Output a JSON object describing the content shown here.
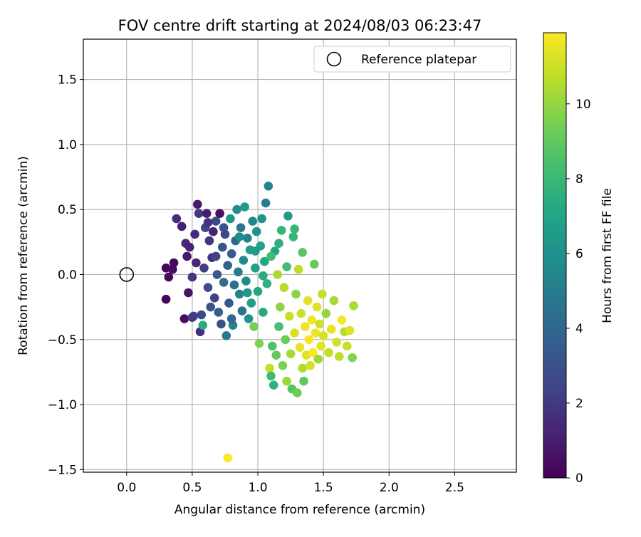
{
  "chart_data": {
    "type": "scatter",
    "title": "FOV centre drift starting at 2024/08/03 06:23:47",
    "xlabel": "Angular distance from reference (arcmin)",
    "ylabel": "Rotation from reference (arcmin)",
    "xlim": [
      -0.33,
      2.97
    ],
    "ylim": [
      -1.52,
      1.81
    ],
    "xticks": [
      "0.0",
      "0.5",
      "1.0",
      "1.5",
      "2.0",
      "2.5"
    ],
    "xtick_values": [
      0.0,
      0.5,
      1.0,
      1.5,
      2.0,
      2.5
    ],
    "yticks": [
      "−1.5",
      "−1.0",
      "−0.5",
      "0.0",
      "0.5",
      "1.0",
      "1.5"
    ],
    "ytick_values": [
      -1.5,
      -1.0,
      -0.5,
      0.0,
      0.5,
      1.0,
      1.5
    ],
    "grid": true,
    "legend": {
      "position": "top-right",
      "entries": [
        {
          "label": "Reference platepar",
          "marker": "open-circle"
        }
      ]
    },
    "reference_point": {
      "x": 0.0,
      "y": 0.0
    },
    "colorbar": {
      "label": "Hours from first FF file",
      "colormap": "viridis",
      "range": [
        0,
        11.9
      ],
      "ticks": [
        "0",
        "2",
        "4",
        "6",
        "8",
        "10"
      ],
      "tick_values": [
        0,
        2,
        4,
        6,
        8,
        10
      ]
    },
    "points": [
      [
        0.3,
        -0.19,
        0.1
      ],
      [
        0.3,
        0.05,
        0.2
      ],
      [
        0.32,
        -0.02,
        0.3
      ],
      [
        0.35,
        0.04,
        0.4
      ],
      [
        0.36,
        0.09,
        0.3
      ],
      [
        0.38,
        0.43,
        1.6
      ],
      [
        0.42,
        0.37,
        1.1
      ],
      [
        0.44,
        -0.34,
        0.5
      ],
      [
        0.45,
        0.24,
        1.4
      ],
      [
        0.46,
        0.14,
        0.8
      ],
      [
        0.47,
        -0.14,
        0.7
      ],
      [
        0.48,
        0.21,
        1.2
      ],
      [
        0.5,
        -0.02,
        1.9
      ],
      [
        0.51,
        -0.32,
        2.4
      ],
      [
        0.52,
        0.31,
        1.5
      ],
      [
        0.53,
        0.09,
        1.3
      ],
      [
        0.54,
        0.54,
        0.9
      ],
      [
        0.55,
        0.47,
        2.0
      ],
      [
        0.56,
        -0.44,
        1.6
      ],
      [
        0.57,
        -0.31,
        2.6
      ],
      [
        0.58,
        -0.39,
        7.4
      ],
      [
        0.59,
        0.05,
        2.2
      ],
      [
        0.6,
        0.36,
        2.5
      ],
      [
        0.61,
        0.47,
        1.0
      ],
      [
        0.62,
        -0.1,
        2.8
      ],
      [
        0.63,
        0.26,
        1.9
      ],
      [
        0.64,
        -0.25,
        3.2
      ],
      [
        0.65,
        0.13,
        1.7
      ],
      [
        0.66,
        0.33,
        1.2
      ],
      [
        0.67,
        -0.18,
        2.3
      ],
      [
        0.68,
        0.41,
        2.7
      ],
      [
        0.69,
        0.0,
        3.4
      ],
      [
        0.7,
        -0.29,
        3.6
      ],
      [
        0.71,
        0.47,
        0.6
      ],
      [
        0.72,
        -0.38,
        2.9
      ],
      [
        0.73,
        0.21,
        3.1
      ],
      [
        0.74,
        -0.06,
        4.2
      ],
      [
        0.75,
        0.31,
        2.6
      ],
      [
        0.76,
        -0.47,
        4.8
      ],
      [
        0.77,
        0.07,
        3.8
      ],
      [
        0.78,
        -0.22,
        3.3
      ],
      [
        0.79,
        0.43,
        6.3
      ],
      [
        0.8,
        0.16,
        3.5
      ],
      [
        0.81,
        -0.39,
        5.2
      ],
      [
        0.82,
        -0.08,
        4.5
      ],
      [
        0.83,
        0.26,
        4.0
      ],
      [
        0.84,
        0.5,
        5.8
      ],
      [
        0.85,
        0.02,
        4.9
      ],
      [
        0.86,
        -0.15,
        5.3
      ],
      [
        0.87,
        0.36,
        4.7
      ],
      [
        0.88,
        -0.28,
        4.6
      ],
      [
        0.89,
        0.11,
        5.6
      ],
      [
        0.9,
        0.52,
        6.4
      ],
      [
        0.91,
        -0.05,
        5.9
      ],
      [
        0.92,
        0.28,
        5.1
      ],
      [
        0.93,
        -0.34,
        6.1
      ],
      [
        0.94,
        0.19,
        6.7
      ],
      [
        0.95,
        -0.22,
        6.6
      ],
      [
        0.96,
        0.41,
        5.5
      ],
      [
        0.97,
        -0.4,
        9.4
      ],
      [
        0.98,
        0.05,
        6.8
      ],
      [
        0.99,
        0.33,
        6.0
      ],
      [
        1.0,
        -0.13,
        7.0
      ],
      [
        1.01,
        -0.53,
        9.6
      ],
      [
        1.02,
        0.22,
        6.9
      ],
      [
        1.03,
        0.43,
        6.2
      ],
      [
        1.04,
        -0.29,
        7.3
      ],
      [
        1.05,
        0.1,
        7.1
      ],
      [
        1.06,
        0.55,
        5.0
      ],
      [
        1.07,
        -0.07,
        7.6
      ],
      [
        1.08,
        0.68,
        5.4
      ],
      [
        1.09,
        -0.72,
        10.8
      ],
      [
        1.1,
        -0.78,
        8.1
      ],
      [
        1.11,
        -0.55,
        8.6
      ],
      [
        1.12,
        -0.85,
        7.7
      ],
      [
        1.13,
        0.18,
        7.2
      ],
      [
        1.14,
        -0.62,
        9.0
      ],
      [
        1.15,
        0.0,
        10.4
      ],
      [
        1.16,
        -0.4,
        8.4
      ],
      [
        1.17,
        -0.25,
        9.9
      ],
      [
        1.18,
        0.34,
        7.9
      ],
      [
        1.19,
        -0.7,
        9.5
      ],
      [
        1.2,
        -0.1,
        10.6
      ],
      [
        1.21,
        -0.5,
        9.2
      ],
      [
        1.22,
        -0.82,
        10.1
      ],
      [
        1.23,
        0.45,
        6.5
      ],
      [
        1.24,
        -0.32,
        10.9
      ],
      [
        1.25,
        -0.61,
        10.3
      ],
      [
        1.26,
        -0.88,
        8.7
      ],
      [
        1.27,
        0.29,
        7.8
      ],
      [
        1.28,
        -0.45,
        11.2
      ],
      [
        1.29,
        -0.15,
        9.8
      ],
      [
        1.3,
        -0.91,
        9.3
      ],
      [
        1.31,
        0.04,
        10.7
      ],
      [
        1.32,
        -0.56,
        11.5
      ],
      [
        1.33,
        -0.3,
        11.0
      ],
      [
        1.34,
        -0.72,
        10.5
      ],
      [
        1.35,
        -0.82,
        8.9
      ],
      [
        1.36,
        -0.4,
        11.6
      ],
      [
        1.37,
        -0.62,
        11.3
      ],
      [
        1.38,
        -0.2,
        11.4
      ],
      [
        1.39,
        -0.5,
        11.8
      ],
      [
        1.4,
        -0.7,
        11.1
      ],
      [
        1.41,
        -0.35,
        11.7
      ],
      [
        1.42,
        -0.6,
        11.9
      ],
      [
        1.43,
        0.08,
        9.1
      ],
      [
        1.44,
        -0.45,
        11.6
      ],
      [
        1.45,
        -0.25,
        11.3
      ],
      [
        1.46,
        -0.65,
        10.2
      ],
      [
        1.47,
        -0.38,
        11.0
      ],
      [
        1.48,
        -0.55,
        11.4
      ],
      [
        1.49,
        -0.15,
        10.9
      ],
      [
        1.5,
        -0.47,
        11.2
      ],
      [
        1.52,
        -0.3,
        10.0
      ],
      [
        1.54,
        -0.6,
        10.8
      ],
      [
        1.56,
        -0.42,
        11.5
      ],
      [
        1.58,
        -0.2,
        10.3
      ],
      [
        1.6,
        -0.52,
        11.1
      ],
      [
        1.62,
        -0.63,
        10.7
      ],
      [
        1.64,
        -0.35,
        11.8
      ],
      [
        1.66,
        -0.44,
        10.6
      ],
      [
        1.68,
        -0.55,
        10.9
      ],
      [
        1.7,
        -0.43,
        11.3
      ],
      [
        1.72,
        -0.64,
        9.7
      ],
      [
        1.73,
        -0.24,
        10.4
      ],
      [
        0.77,
        -1.41,
        11.9
      ],
      [
        0.5,
        -0.33,
        2.1
      ],
      [
        0.62,
        0.4,
        1.8
      ],
      [
        0.68,
        0.14,
        2.4
      ],
      [
        0.74,
        0.36,
        3.0
      ],
      [
        0.8,
        -0.34,
        4.1
      ],
      [
        0.86,
        0.29,
        5.7
      ],
      [
        0.92,
        -0.14,
        6.3
      ],
      [
        0.98,
        0.18,
        6.5
      ],
      [
        1.04,
        -0.01,
        7.4
      ],
      [
        1.1,
        0.14,
        8.2
      ],
      [
        1.16,
        0.24,
        7.5
      ],
      [
        1.22,
        0.06,
        8.3
      ],
      [
        1.28,
        0.35,
        7.9
      ],
      [
        1.34,
        0.17,
        8.8
      ]
    ]
  }
}
